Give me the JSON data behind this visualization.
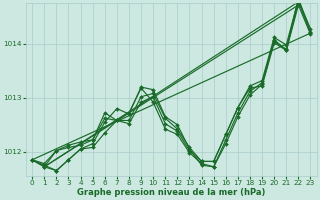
{
  "background_color": "#cce8e0",
  "grid_color": "#aacccc",
  "line_color": "#1a6b2a",
  "text_color": "#1a6b2a",
  "xlim": [
    -0.5,
    23.5
  ],
  "ylim": [
    1011.55,
    1014.75
  ],
  "yticks": [
    1012,
    1013,
    1014
  ],
  "xticks": [
    0,
    1,
    2,
    3,
    4,
    5,
    6,
    7,
    8,
    9,
    10,
    11,
    12,
    13,
    14,
    15,
    16,
    17,
    18,
    19,
    20,
    21,
    22,
    23
  ],
  "xlabel": "Graphe pression niveau de la mer (hPa)",
  "series": [
    [
      1011.85,
      1011.75,
      1011.65,
      1011.85,
      1012.05,
      1012.15,
      1012.55,
      1012.8,
      1012.7,
      1013.2,
      1013.15,
      1012.65,
      1012.5,
      1012.05,
      1011.75,
      1011.72,
      1012.15,
      1012.65,
      1013.05,
      1013.25,
      1014.05,
      1013.9,
      1014.85,
      1014.2
    ],
    [
      1011.85,
      1011.72,
      1011.65,
      1011.85,
      1012.05,
      1012.08,
      1012.35,
      1012.58,
      1012.72,
      1013.18,
      1012.92,
      1012.42,
      1012.32,
      1011.98,
      1011.78,
      1011.72,
      1012.22,
      1012.72,
      1013.12,
      1013.28,
      1014.08,
      1013.88,
      1014.78,
      1014.22
    ],
    [
      1011.85,
      1011.72,
      1012.02,
      1012.08,
      1012.12,
      1012.22,
      1012.62,
      1012.58,
      1012.52,
      1012.92,
      1013.02,
      1012.52,
      1012.38,
      1012.02,
      1011.82,
      1011.82,
      1012.32,
      1012.82,
      1013.22,
      1013.32,
      1014.12,
      1013.98,
      1014.82,
      1014.28
    ],
    [
      1011.85,
      1011.78,
      1012.02,
      1012.12,
      1012.18,
      1012.22,
      1012.72,
      1012.58,
      1012.58,
      1013.02,
      1013.08,
      1012.62,
      1012.42,
      1012.08,
      1011.82,
      1011.82,
      1012.32,
      1012.82,
      1013.18,
      1013.22,
      1014.02,
      1013.88,
      1014.72,
      1014.18
    ]
  ],
  "trend_lines": [
    {
      "x": [
        0,
        23
      ],
      "y": [
        1011.85,
        1014.2
      ]
    },
    {
      "x": [
        1,
        22
      ],
      "y": [
        1011.72,
        1014.78
      ]
    },
    {
      "x": [
        1,
        22
      ],
      "y": [
        1011.72,
        1014.72
      ]
    }
  ],
  "marker": "D",
  "markersize": 2.0,
  "linewidth": 0.85,
  "xlabel_fontsize": 6.0,
  "tick_labelsize": 5.2
}
